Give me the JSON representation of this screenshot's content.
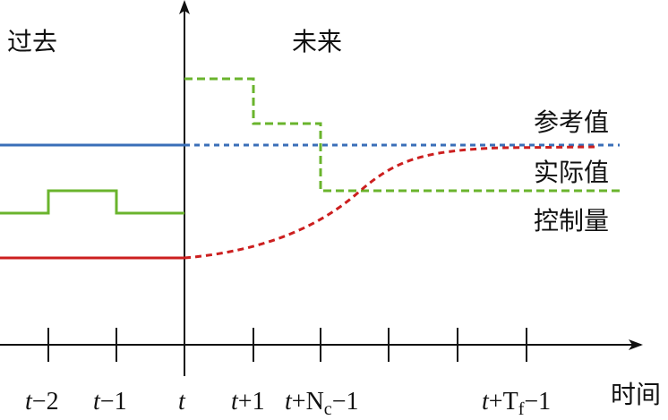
{
  "labels": {
    "past": "过去",
    "future": "未来",
    "reference": "参考值",
    "actual": "实际值",
    "control": "控制量",
    "time_axis": "时间"
  },
  "ticks": [
    {
      "t": "t",
      "rest": "−2"
    },
    {
      "t": "t",
      "rest": "−1"
    },
    {
      "t": "t",
      "rest": ""
    },
    {
      "t": "t",
      "rest": "+1"
    },
    {
      "t": "t",
      "rest": "+N",
      "sub": "c",
      "tail": "−1"
    },
    {
      "t": "t",
      "rest": "+T",
      "sub": "f",
      "tail": "−1"
    }
  ],
  "colors": {
    "reference": "#3a6fb8",
    "actual": "#cc1f1f",
    "control": "#6ab42d",
    "axis": "#111111"
  }
}
